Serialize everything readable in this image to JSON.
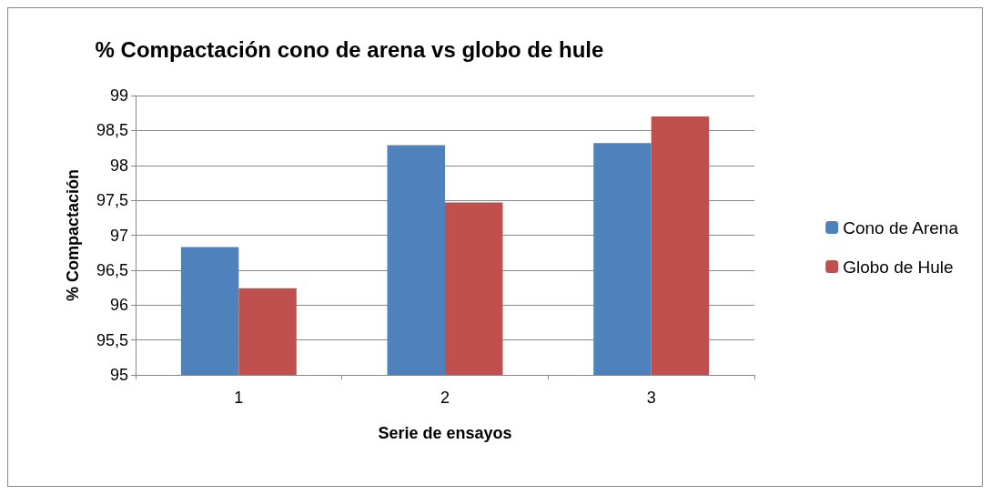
{
  "chart_data": {
    "type": "bar",
    "title": "% Compactación cono de arena vs globo de hule",
    "xlabel": "Serie de ensayos",
    "ylabel": "% Compactación",
    "categories": [
      "1",
      "2",
      "3"
    ],
    "series": [
      {
        "name": "Cono de Arena",
        "color": "#4f81bd",
        "values": [
          96.83,
          98.29,
          98.32
        ]
      },
      {
        "name": "Globo de Hule",
        "color": "#c0504d",
        "values": [
          96.24,
          97.47,
          98.7
        ]
      }
    ],
    "ylim": [
      95,
      99
    ],
    "yticks": [
      95,
      {
        "value": 95.5,
        "label": "95,5"
      },
      96,
      {
        "value": 96.5,
        "label": "96,5"
      },
      97,
      {
        "value": 97.5,
        "label": "97,5"
      },
      98,
      {
        "value": 98.5,
        "label": "98,5"
      },
      99
    ],
    "grid": "y",
    "legend": "right"
  }
}
